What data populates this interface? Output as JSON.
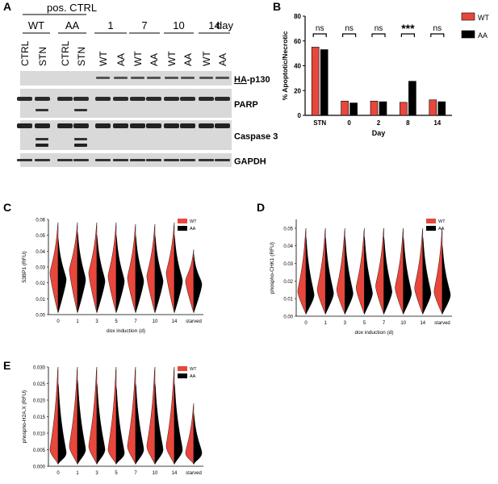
{
  "panels": {
    "A": "A",
    "B": "B",
    "C": "C",
    "D": "D",
    "E": "E"
  },
  "western": {
    "header_group": "pos. CTRL",
    "groups": [
      {
        "label": "WT",
        "lanes": [
          "CTRL",
          "STN"
        ]
      },
      {
        "label": "AA",
        "lanes": [
          "CTRL",
          "STN"
        ]
      },
      {
        "label": "1",
        "lanes": [
          "WT",
          "AA"
        ]
      },
      {
        "label": "7",
        "lanes": [
          "WT",
          "AA"
        ]
      },
      {
        "label": "10",
        "lanes": [
          "WT",
          "AA"
        ]
      },
      {
        "label": "14",
        "lanes": [
          "WT",
          "AA"
        ]
      }
    ],
    "day_label": "day",
    "bands": [
      {
        "prefix": "HA",
        "label": "-p130"
      },
      {
        "prefix": "",
        "label": "PARP"
      },
      {
        "prefix": "",
        "label": "Caspase 3"
      },
      {
        "prefix": "",
        "label": "GAPDH"
      }
    ]
  },
  "chart_data": [
    {
      "type": "bar",
      "title": "",
      "xlabel": "Day",
      "ylabel": "% Apoptotic/Necrotic",
      "categories": [
        "STN",
        "0",
        "2",
        "8",
        "14"
      ],
      "ylim": [
        0,
        80
      ],
      "yticks": [
        "0",
        "20",
        "40",
        "60",
        "80"
      ],
      "series": [
        {
          "name": "WT",
          "color": "#e8473c",
          "values": [
            55,
            11.5,
            11.5,
            10.5,
            12.5
          ]
        },
        {
          "name": "AA",
          "color": "#000000",
          "values": [
            53,
            10,
            11,
            27.5,
            11
          ]
        }
      ],
      "significance": [
        "ns",
        "ns",
        "ns",
        "***",
        "ns"
      ],
      "legend": "top-right"
    },
    {
      "type": "violin",
      "xlabel": "dox induction (d)",
      "ylabel": "53BP1 (RFU)",
      "categories": [
        "0",
        "1",
        "3",
        "5",
        "7",
        "10",
        "14",
        "starved"
      ],
      "ylim": [
        0,
        0.06
      ],
      "yticks": [
        "0.00",
        "0.01",
        "0.02",
        "0.03",
        "0.04",
        "0.05",
        "0.06"
      ],
      "series": [
        {
          "name": "WT",
          "color": "#e8473c",
          "medians": [
            0.026,
            0.028,
            0.026,
            0.024,
            0.023,
            0.024,
            0.026,
            0.021
          ],
          "max": [
            0.058,
            0.058,
            0.058,
            0.058,
            0.057,
            0.057,
            0.058,
            0.041
          ]
        },
        {
          "name": "AA",
          "color": "#000000",
          "medians": [
            0.022,
            0.022,
            0.021,
            0.021,
            0.021,
            0.021,
            0.021,
            0.019
          ],
          "max": [
            0.048,
            0.052,
            0.05,
            0.05,
            0.05,
            0.05,
            0.05,
            0.038
          ]
        }
      ],
      "legend": "top-right"
    },
    {
      "type": "violin",
      "xlabel": "dox induction (d)",
      "ylabel": "phospho-CHK1 (RFU)",
      "categories": [
        "0",
        "1",
        "3",
        "5",
        "7",
        "10",
        "14",
        "starved"
      ],
      "ylim": [
        0,
        0.055
      ],
      "yticks": [
        "0.00",
        "0.01",
        "0.02",
        "0.03",
        "0.04",
        "0.05"
      ],
      "series": [
        {
          "name": "WT",
          "color": "#e8473c",
          "medians": [
            0.014,
            0.015,
            0.015,
            0.016,
            0.017,
            0.016,
            0.016,
            0.014
          ],
          "max": [
            0.05,
            0.05,
            0.05,
            0.05,
            0.05,
            0.05,
            0.05,
            0.05
          ]
        },
        {
          "name": "AA",
          "color": "#000000",
          "medians": [
            0.012,
            0.013,
            0.013,
            0.013,
            0.014,
            0.013,
            0.013,
            0.012
          ],
          "max": [
            0.045,
            0.045,
            0.045,
            0.045,
            0.045,
            0.045,
            0.045,
            0.04
          ]
        }
      ],
      "legend": "top-right"
    },
    {
      "type": "violin",
      "xlabel": "dox induction (d)",
      "ylabel": "phospho-H2A.X (RFU)",
      "categories": [
        "0",
        "1",
        "3",
        "5",
        "7",
        "10",
        "14",
        "starved"
      ],
      "ylim": [
        0,
        0.03
      ],
      "yticks": [
        "0.000",
        "0.005",
        "0.010",
        "0.015",
        "0.020",
        "0.025",
        "0.030"
      ],
      "series": [
        {
          "name": "WT",
          "color": "#e8473c",
          "medians": [
            0.005,
            0.006,
            0.006,
            0.005,
            0.006,
            0.006,
            0.006,
            0.004
          ],
          "max": [
            0.03,
            0.03,
            0.03,
            0.03,
            0.03,
            0.03,
            0.03,
            0.019
          ]
        },
        {
          "name": "AA",
          "color": "#000000",
          "medians": [
            0.004,
            0.005,
            0.005,
            0.004,
            0.005,
            0.005,
            0.005,
            0.004
          ],
          "max": [
            0.025,
            0.026,
            0.025,
            0.024,
            0.025,
            0.025,
            0.025,
            0.016
          ]
        }
      ],
      "legend": "top-right"
    }
  ]
}
